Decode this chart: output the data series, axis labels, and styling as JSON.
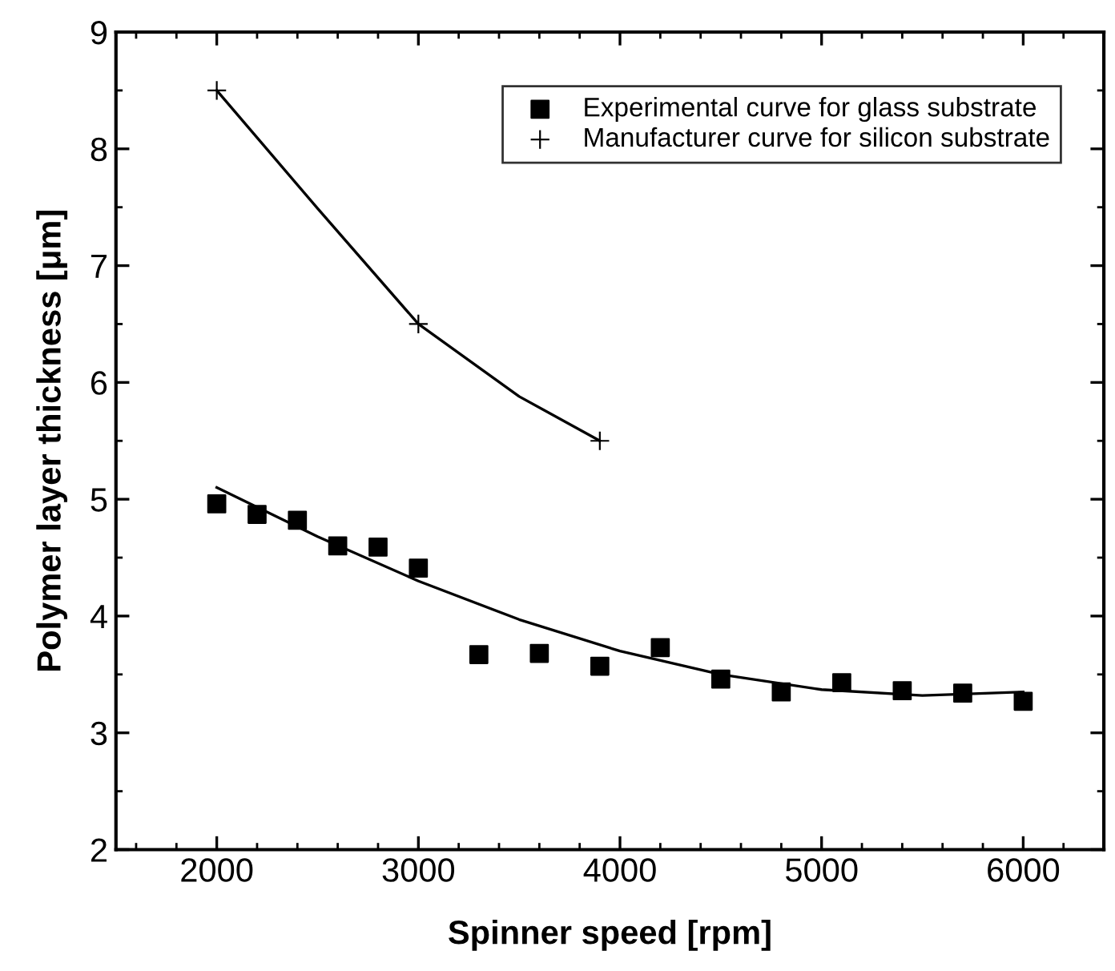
{
  "chart_data": {
    "type": "scatter",
    "xlabel": "Spinner speed [rpm]",
    "ylabel": "Polymer layer thickness [μm]",
    "xlim": [
      1500,
      6400
    ],
    "xticks": [
      2000,
      3000,
      4000,
      5000,
      6000
    ],
    "ylim": [
      2,
      9
    ],
    "yticks": [
      2,
      3,
      4,
      5,
      6,
      7,
      8,
      9
    ],
    "grid": false,
    "legend": "top right",
    "series": [
      {
        "name": "Experimental curve for glass substrate",
        "marker": "square",
        "color": "#000000",
        "x": [
          2000,
          2200,
          2400,
          2600,
          2800,
          3000,
          3300,
          3600,
          3900,
          4200,
          4500,
          4800,
          5100,
          5400,
          5700,
          6000
        ],
        "values": [
          4.96,
          4.87,
          4.82,
          4.6,
          4.59,
          4.41,
          3.67,
          3.68,
          3.57,
          3.73,
          3.46,
          3.35,
          3.43,
          3.36,
          3.34,
          3.27
        ]
      },
      {
        "name": "Manufacturer curve for silicon substrate",
        "marker": "cross",
        "color": "#000000",
        "x": [
          2000,
          3000,
          3900
        ],
        "values": [
          8.5,
          6.5,
          5.5
        ]
      },
      {
        "type": "line",
        "line_style": "solid",
        "color": "#000000",
        "x": [
          2000,
          2500,
          3000,
          3500,
          4000,
          4500,
          5000,
          5500,
          6000
        ],
        "values": [
          5.1,
          4.68,
          4.3,
          3.97,
          3.7,
          3.5,
          3.37,
          3.32,
          3.35
        ]
      },
      {
        "type": "line",
        "line_style": "solid",
        "color": "#000000",
        "x": [
          2000,
          2500,
          3000,
          3500,
          3900
        ],
        "values": [
          8.5,
          7.49,
          6.5,
          5.88,
          5.5
        ]
      }
    ]
  }
}
